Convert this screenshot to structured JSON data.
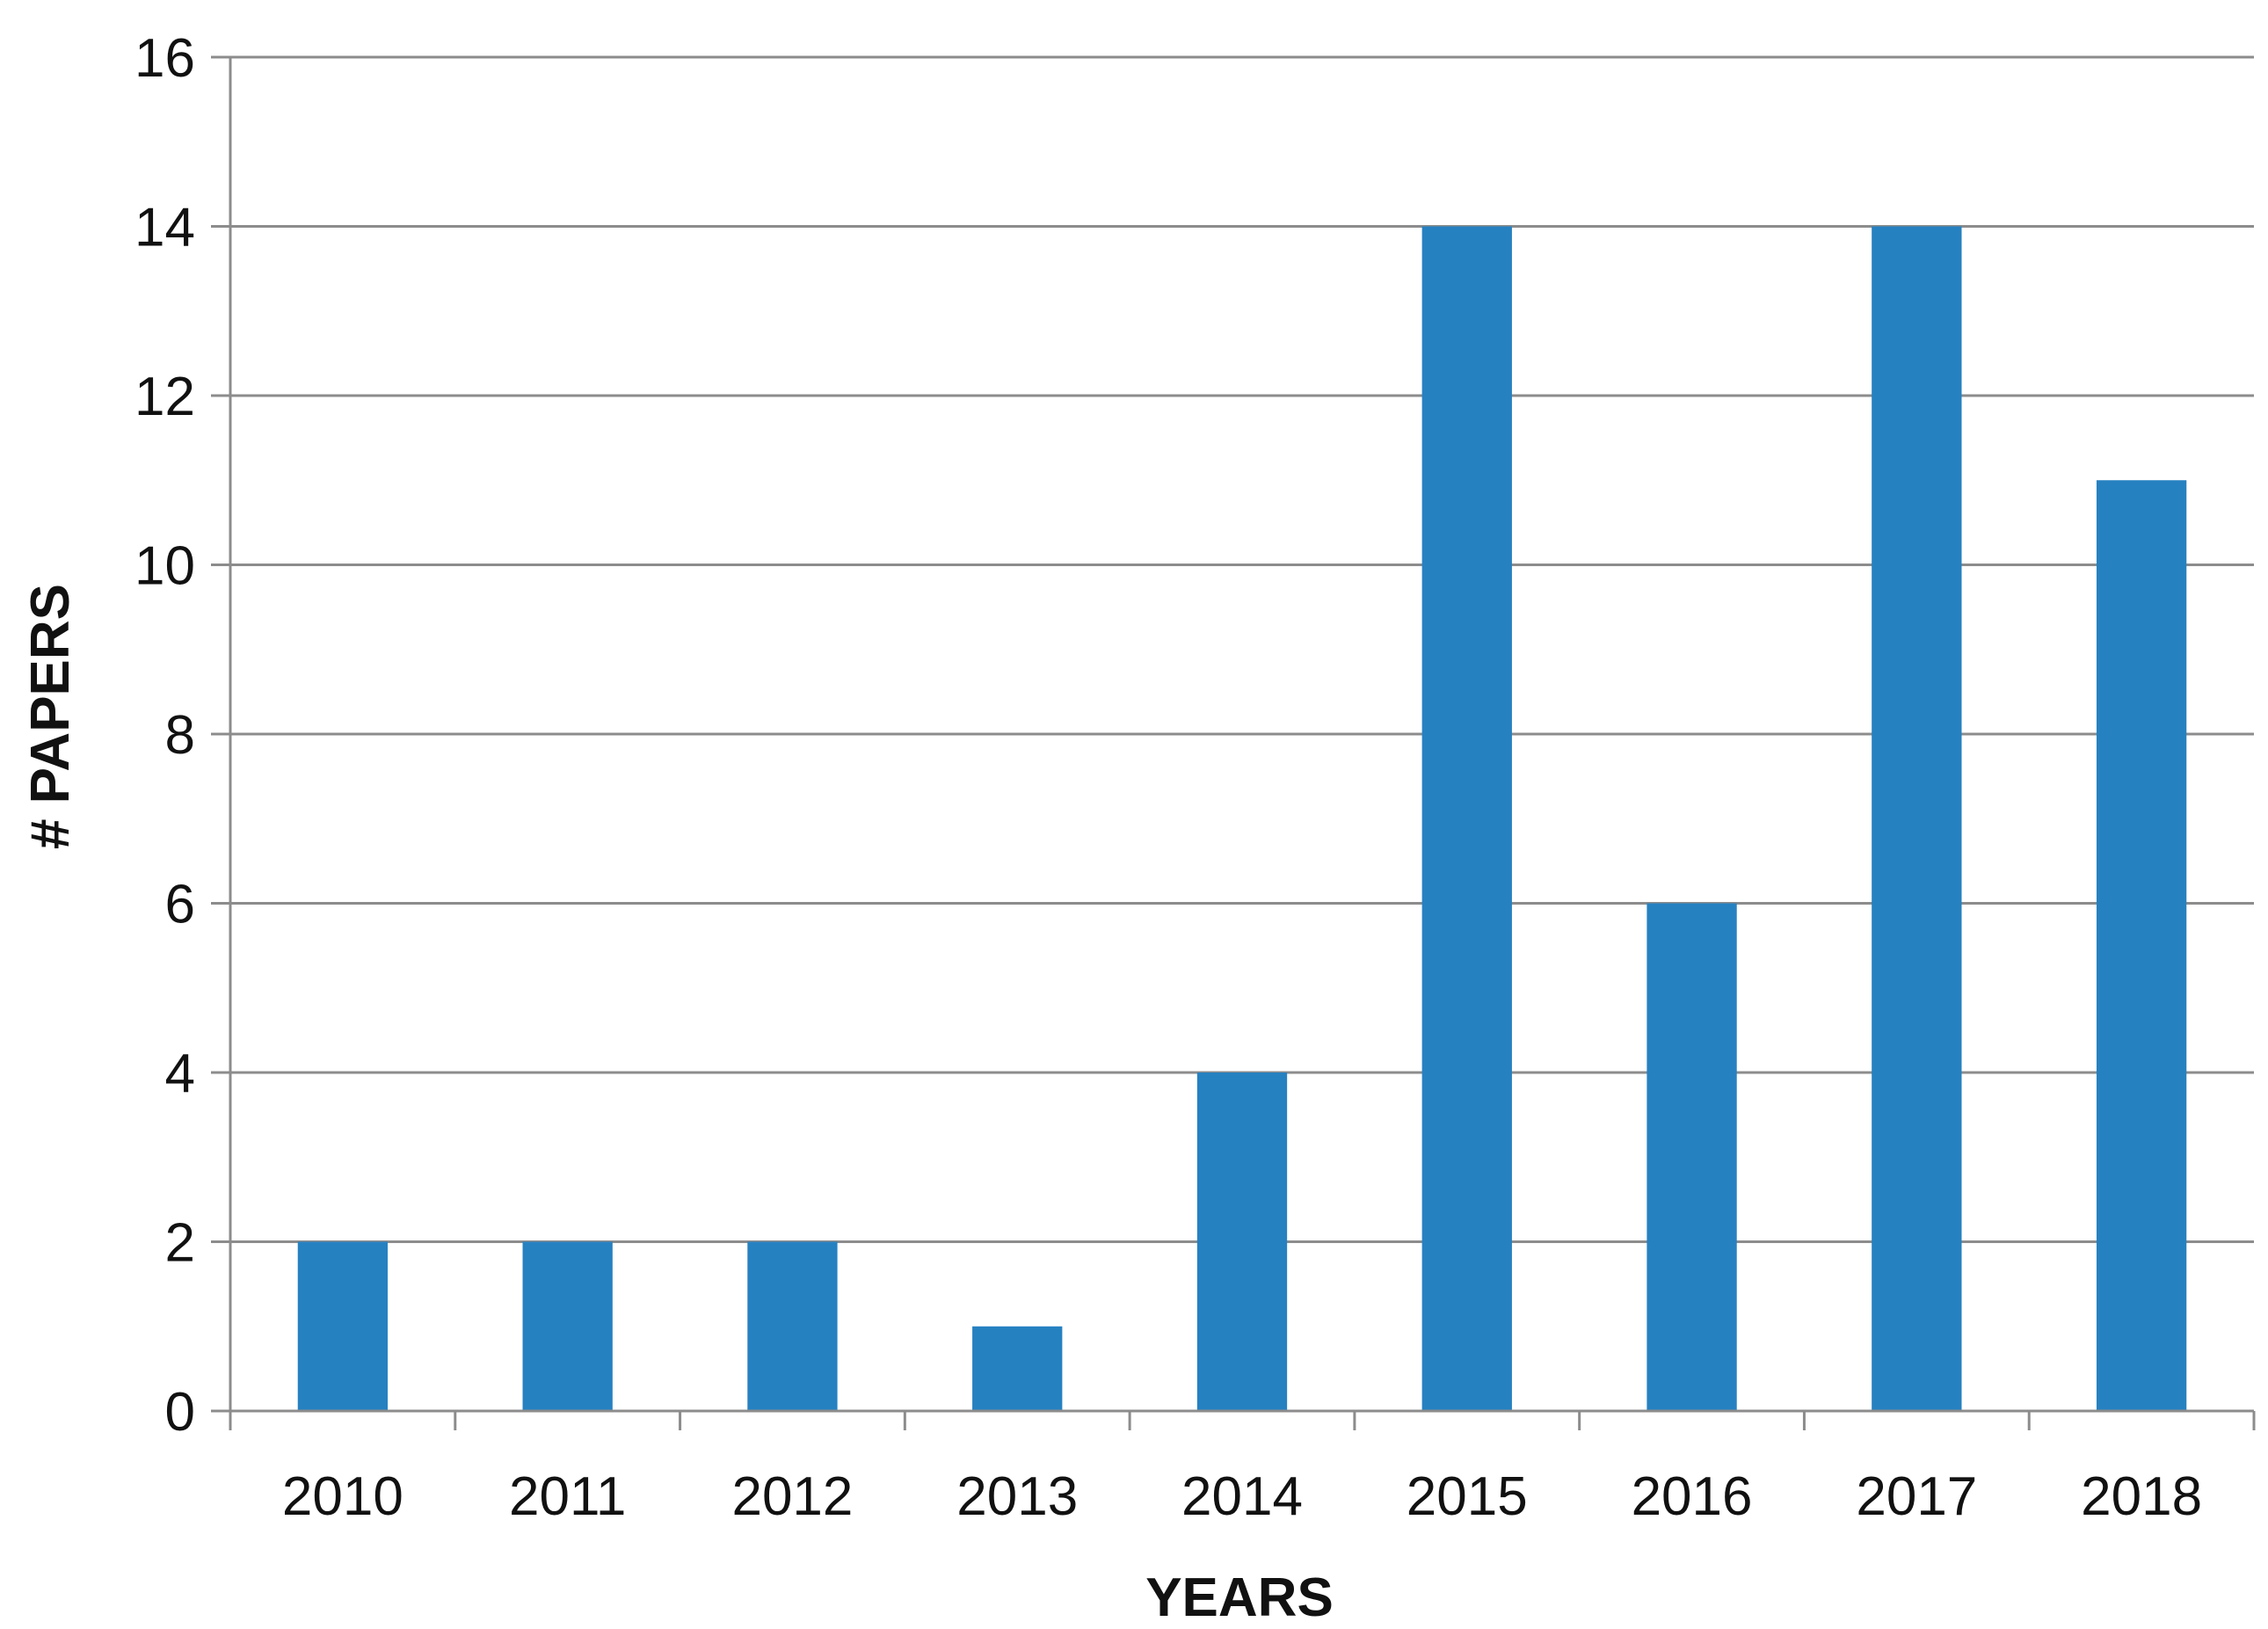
{
  "chart_data": {
    "type": "bar",
    "title": "",
    "xlabel": "YEARS",
    "ylabel": "# PAPERS",
    "categories": [
      "2010",
      "2011",
      "2012",
      "2013",
      "2014",
      "2015",
      "2016",
      "2017",
      "2018"
    ],
    "values": [
      2,
      2,
      2,
      1,
      4,
      14,
      6,
      14,
      11
    ],
    "ylim": [
      0,
      16
    ],
    "yticks": [
      "0",
      "2",
      "4",
      "6",
      "8",
      "10",
      "12",
      "14",
      "16"
    ],
    "grid": true,
    "legend": "none",
    "colors": {
      "bar": "#2681C1",
      "grid": "#8C8C8C",
      "axis": "#8C8C8C",
      "text": "#111111"
    }
  }
}
